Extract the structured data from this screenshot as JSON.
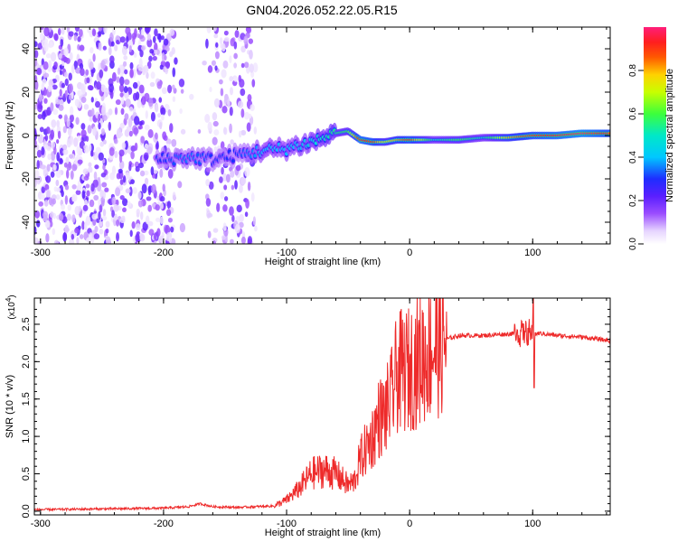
{
  "figure": {
    "title": "GN04.2026.052.22.05.R15"
  },
  "chart_data": [
    {
      "type": "heatmap",
      "title": "GN04.2026.052.22.05.R15",
      "xlabel": "Height of straight line (km)",
      "ylabel": "Frequency (Hz)",
      "xlim": [
        -305,
        163
      ],
      "ylim": [
        -50,
        50
      ],
      "x_ticks": [
        -300,
        -200,
        -100,
        0,
        100
      ],
      "y_ticks": [
        -40,
        -20,
        0,
        20,
        40
      ],
      "colorbar": {
        "label": "Normalized spectral amplitude",
        "range": [
          0,
          1
        ],
        "ticks": [
          "0.0",
          "0.2",
          "0.4",
          "0.6",
          "0.8"
        ],
        "tick_values": [
          0,
          0.2,
          0.4,
          0.6,
          0.8
        ]
      },
      "signal_track": {
        "x": [
          -200,
          -180,
          -160,
          -140,
          -120,
          -100,
          -80,
          -60,
          -50,
          -40,
          -30,
          -20,
          -10,
          0,
          20,
          40,
          60,
          80,
          100,
          120,
          140,
          163
        ],
        "freq": [
          -11,
          -10,
          -11,
          -9,
          -7,
          -6,
          -3,
          1,
          2,
          -2,
          -3,
          -3,
          -2,
          -2,
          -2,
          -2,
          -1,
          -1,
          0,
          0,
          1,
          1
        ],
        "amplitude": [
          0.3,
          0.35,
          0.3,
          0.3,
          0.4,
          0.4,
          0.45,
          0.55,
          0.6,
          0.95,
          0.9,
          0.7,
          0.8,
          0.9,
          0.5,
          0.6,
          0.5,
          0.8,
          0.9,
          0.95,
          1.0,
          0.9
        ]
      },
      "noise_region_x": [
        -305,
        -125
      ]
    },
    {
      "type": "line",
      "xlabel": "Height of straight line (km)",
      "ylabel": "SNR (10 * v/v)",
      "y_multiplier": "(x10",
      "y_multiplier_exp": "4",
      "y_multiplier_close": ")",
      "xlim": [
        -305,
        163
      ],
      "ylim": [
        -0.05,
        2.85
      ],
      "x_ticks": [
        -300,
        -200,
        -100,
        0,
        100
      ],
      "y_ticks": [
        "0.0",
        "0.5",
        "1.0",
        "1.5",
        "2.0",
        "2.5"
      ],
      "y_tick_values": [
        0,
        0.5,
        1.0,
        1.5,
        2.0,
        2.5
      ],
      "series": [
        {
          "name": "SNR",
          "color": "#ee2a2a",
          "x": [
            -305,
            -250,
            -200,
            -180,
            -170,
            -160,
            -140,
            -110,
            -100,
            -90,
            -80,
            -70,
            -60,
            -50,
            -45,
            -40,
            -30,
            -25,
            -20,
            -15,
            -10,
            0,
            10,
            20,
            30,
            40,
            60,
            80,
            90,
            95,
            100,
            105,
            110,
            120,
            140,
            163
          ],
          "y": [
            0.02,
            0.03,
            0.04,
            0.06,
            0.1,
            0.06,
            0.05,
            0.07,
            0.15,
            0.3,
            0.5,
            0.55,
            0.5,
            0.35,
            0.4,
            0.7,
            1.0,
            1.25,
            1.3,
            1.5,
            1.85,
            1.9,
            2.05,
            2.2,
            2.3,
            2.35,
            2.35,
            2.37,
            2.38,
            2.4,
            2.35,
            2.38,
            2.37,
            2.35,
            2.33,
            2.28
          ]
        }
      ]
    }
  ]
}
